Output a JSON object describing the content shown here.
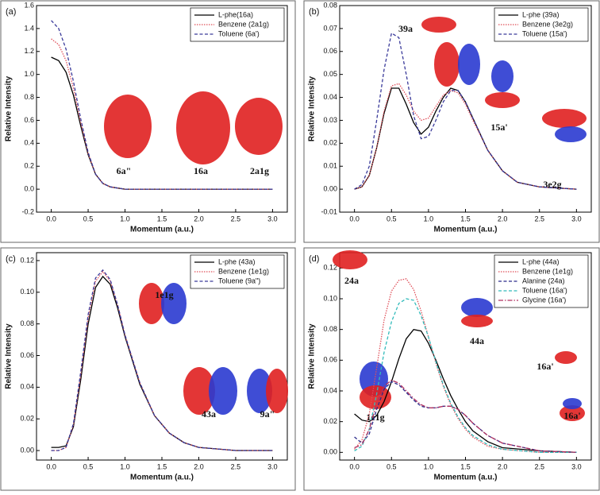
{
  "chart_data": [
    {
      "type": "line",
      "panel": "(a)",
      "xlabel": "Momentum (a.u.)",
      "ylabel": "Relative Intensity",
      "x": [
        0,
        0.1,
        0.2,
        0.3,
        0.4,
        0.5,
        0.6,
        0.7,
        0.8,
        0.9,
        1.0,
        1.5,
        2.0,
        2.5,
        3.0
      ],
      "series": [
        {
          "name": "L-phe(16a)",
          "color": "#000000",
          "style": "solid",
          "values": [
            1.15,
            1.12,
            1.02,
            0.82,
            0.55,
            0.3,
            0.13,
            0.05,
            0.02,
            0.01,
            0,
            0,
            0,
            0,
            0
          ]
        },
        {
          "name": "Benzene (2a1g)",
          "color": "#e0505a",
          "style": "dotted",
          "values": [
            1.31,
            1.26,
            1.12,
            0.88,
            0.58,
            0.31,
            0.13,
            0.05,
            0.02,
            0.01,
            0,
            0,
            0,
            0,
            0
          ]
        },
        {
          "name": "Toluene (6a')",
          "color": "#3a3a9a",
          "style": "dashed",
          "values": [
            1.47,
            1.4,
            1.22,
            0.94,
            0.61,
            0.32,
            0.13,
            0.05,
            0.02,
            0.01,
            0,
            0,
            0,
            0,
            0
          ]
        }
      ],
      "xlim": [
        -0.2,
        3.2
      ],
      "ylim": [
        -0.2,
        1.6
      ],
      "xticks": [
        {
          "value": 0,
          "label": "0.0"
        },
        0.5,
        {
          "value": 1,
          "label": "1.0"
        },
        1.5,
        {
          "value": 2,
          "label": "2.0"
        },
        2.5,
        {
          "value": 3,
          "label": "3.0"
        }
      ],
      "yticks": [
        -0.2,
        {
          "value": 0,
          "label": "0.0"
        },
        0.2,
        0.4,
        0.6,
        0.8,
        {
          "value": 1,
          "label": "1.0"
        },
        1.2,
        1.4,
        1.6
      ],
      "legend": "upper right",
      "annotations": [
        "6a\"",
        "16a",
        "2a1g"
      ]
    },
    {
      "type": "line",
      "panel": "(b)",
      "xlabel": "Momentum (a.u.)",
      "ylabel": "Relative Intensity",
      "x": [
        0,
        0.1,
        0.2,
        0.3,
        0.4,
        0.5,
        0.6,
        0.7,
        0.8,
        0.9,
        1.0,
        1.1,
        1.2,
        1.3,
        1.4,
        1.5,
        1.6,
        1.8,
        2.0,
        2.2,
        2.5,
        3.0
      ],
      "series": [
        {
          "name": "L-phe (39a)",
          "color": "#000000",
          "style": "solid",
          "values": [
            0,
            0.001,
            0.006,
            0.018,
            0.033,
            0.044,
            0.044,
            0.037,
            0.029,
            0.024,
            0.027,
            0.034,
            0.04,
            0.044,
            0.043,
            0.038,
            0.031,
            0.017,
            0.008,
            0.003,
            0.001,
            0
          ]
        },
        {
          "name": "Benzene (3e2g)",
          "color": "#e0505a",
          "style": "dotted",
          "values": [
            0,
            0.001,
            0.006,
            0.018,
            0.034,
            0.045,
            0.046,
            0.041,
            0.034,
            0.03,
            0.031,
            0.036,
            0.041,
            0.043,
            0.042,
            0.037,
            0.03,
            0.017,
            0.008,
            0.003,
            0.001,
            0
          ]
        },
        {
          "name": "Toluene (15a')",
          "color": "#3a3a9a",
          "style": "dashed",
          "values": [
            0,
            0.002,
            0.01,
            0.03,
            0.052,
            0.068,
            0.066,
            0.05,
            0.032,
            0.022,
            0.023,
            0.03,
            0.038,
            0.043,
            0.043,
            0.038,
            0.031,
            0.017,
            0.008,
            0.003,
            0.001,
            0
          ]
        }
      ],
      "xlim": [
        -0.2,
        3.2
      ],
      "ylim": [
        -0.01,
        0.08
      ],
      "xticks": [
        {
          "value": 0,
          "label": "0.0"
        },
        0.5,
        {
          "value": 1,
          "label": "1.0"
        },
        1.5,
        {
          "value": 2,
          "label": "2.0"
        },
        2.5,
        {
          "value": 3,
          "label": "3.0"
        }
      ],
      "yticks": [
        -0.01,
        {
          "value": 0,
          "label": "0.00"
        },
        0.01,
        0.02,
        0.03,
        0.04,
        0.05,
        0.06,
        0.07,
        0.08
      ],
      "legend": "upper right",
      "annotations": [
        "39a",
        "15a'",
        "3e2g"
      ]
    },
    {
      "type": "line",
      "panel": "(c)",
      "xlabel": "Momentum (a.u.)",
      "ylabel": "Relative Intensity",
      "x": [
        0,
        0.1,
        0.2,
        0.3,
        0.4,
        0.5,
        0.6,
        0.7,
        0.8,
        0.9,
        1.0,
        1.2,
        1.4,
        1.6,
        1.8,
        2.0,
        2.5,
        3.0
      ],
      "series": [
        {
          "name": "L-phe (43a)",
          "color": "#000000",
          "style": "solid",
          "values": [
            0.002,
            0.002,
            0.003,
            0.015,
            0.045,
            0.08,
            0.103,
            0.11,
            0.105,
            0.09,
            0.072,
            0.042,
            0.022,
            0.011,
            0.005,
            0.002,
            0,
            0
          ]
        },
        {
          "name": "Benzene (1e1g)",
          "color": "#e0505a",
          "style": "dotted",
          "values": [
            0,
            0,
            0.002,
            0.016,
            0.048,
            0.084,
            0.107,
            0.113,
            0.107,
            0.092,
            0.073,
            0.043,
            0.022,
            0.011,
            0.005,
            0.002,
            0,
            0
          ]
        },
        {
          "name": "Toluene (9a\")",
          "color": "#3a3a9a",
          "style": "dashed",
          "values": [
            0,
            0,
            0.002,
            0.017,
            0.05,
            0.086,
            0.109,
            0.114,
            0.108,
            0.092,
            0.073,
            0.043,
            0.022,
            0.011,
            0.005,
            0.002,
            0,
            0
          ]
        }
      ],
      "xlim": [
        -0.2,
        3.2
      ],
      "ylim": [
        -0.006,
        0.125
      ],
      "xticks": [
        {
          "value": 0,
          "label": "0.0"
        },
        0.5,
        {
          "value": 1,
          "label": "1.0"
        },
        1.5,
        {
          "value": 2,
          "label": "2.0"
        },
        2.5,
        {
          "value": 3,
          "label": "3.0"
        }
      ],
      "yticks": [
        {
          "value": 0,
          "label": "0.00"
        },
        0.02,
        0.04,
        0.06,
        0.08,
        {
          "value": 0.1,
          "label": "0.10"
        },
        0.12
      ],
      "legend": "upper right",
      "annotations": [
        "1e1g",
        "43a",
        "9a\""
      ]
    },
    {
      "type": "line",
      "panel": "(d)",
      "xlabel": "Momentum (a.u.)",
      "ylabel": "Relative Intensity",
      "x": [
        0,
        0.1,
        0.2,
        0.3,
        0.4,
        0.5,
        0.6,
        0.7,
        0.8,
        0.9,
        1.0,
        1.1,
        1.2,
        1.3,
        1.4,
        1.5,
        1.6,
        1.8,
        2.0,
        2.5,
        3.0
      ],
      "series": [
        {
          "name": "L-phe (44a)",
          "color": "#000000",
          "style": "solid",
          "values": [
            0.025,
            0.021,
            0.02,
            0.024,
            0.033,
            0.046,
            0.061,
            0.074,
            0.08,
            0.079,
            0.071,
            0.06,
            0.048,
            0.037,
            0.028,
            0.02,
            0.014,
            0.007,
            0.003,
            0.001,
            0
          ]
        },
        {
          "name": "Benzene (1e1g)",
          "color": "#e0505a",
          "style": "dotted",
          "values": [
            0.002,
            0.008,
            0.025,
            0.055,
            0.086,
            0.105,
            0.112,
            0.113,
            0.106,
            0.092,
            0.075,
            0.058,
            0.043,
            0.031,
            0.022,
            0.015,
            0.01,
            0.004,
            0.002,
            0,
            0
          ]
        },
        {
          "name": "Alanine (24a)",
          "color": "#2a2a8a",
          "style": "dashed",
          "values": [
            0.01,
            0.006,
            0.012,
            0.028,
            0.041,
            0.046,
            0.044,
            0.039,
            0.034,
            0.03,
            0.029,
            0.029,
            0.03,
            0.03,
            0.028,
            0.024,
            0.019,
            0.011,
            0.006,
            0.001,
            0
          ]
        },
        {
          "name": "Toluene (16a')",
          "color": "#33bbbb",
          "style": "dashed",
          "values": [
            0.001,
            0.004,
            0.015,
            0.038,
            0.065,
            0.085,
            0.097,
            0.1,
            0.099,
            0.089,
            0.075,
            0.059,
            0.044,
            0.032,
            0.023,
            0.016,
            0.011,
            0.005,
            0.002,
            0,
            0
          ]
        },
        {
          "name": "Glycine (16a')",
          "color": "#b03060",
          "style": "dashdot",
          "values": [
            0.003,
            0.005,
            0.015,
            0.032,
            0.043,
            0.047,
            0.045,
            0.04,
            0.035,
            0.031,
            0.029,
            0.029,
            0.03,
            0.03,
            0.028,
            0.024,
            0.019,
            0.011,
            0.006,
            0.001,
            0
          ]
        }
      ],
      "xlim": [
        -0.2,
        3.2
      ],
      "ylim": [
        -0.005,
        0.13
      ],
      "xticks": [
        {
          "value": 0,
          "label": "0.0"
        },
        0.5,
        {
          "value": 1,
          "label": "1.0"
        },
        1.5,
        {
          "value": 2,
          "label": "2.0"
        },
        2.5,
        {
          "value": 3,
          "label": "3.0"
        }
      ],
      "yticks": [
        {
          "value": 0,
          "label": "0.00"
        },
        0.02,
        0.04,
        0.06,
        0.08,
        {
          "value": 0.1,
          "label": "0.10"
        },
        0.12
      ],
      "legend": "upper right",
      "annotations": [
        "24a",
        "44a",
        "16a'",
        "1e1g",
        "16a'"
      ]
    }
  ]
}
